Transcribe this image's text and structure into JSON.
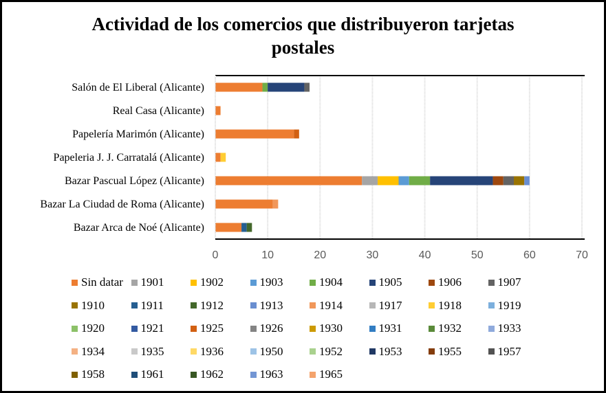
{
  "chart_data": {
    "type": "bar",
    "orientation": "horizontal",
    "stacked": true,
    "title": "Actividad de los comercios que distribuyeron tarjetas postales",
    "title_lines": [
      "Actividad de los comercios que distribuyeron  tarjetas",
      "postales"
    ],
    "xlabel": "",
    "ylabel": "",
    "xlim": [
      0,
      70
    ],
    "xticks": [
      0,
      10,
      20,
      30,
      40,
      50,
      60,
      70
    ],
    "grid": true,
    "legend_position": "bottom",
    "categories": [
      "Salón de El Liberal (Alicante)",
      "Real Casa (Alicante)",
      "Papelería Marimón (Alicante)",
      "Papeleria J. J. Carratalá (Alicante)",
      "Bazar Pascual López (Alicante)",
      "Bazar La Ciudad de Roma (Alicante)",
      "Bazar Arca de Noé (Alicante)"
    ],
    "series": [
      {
        "name": "Sin datar",
        "color": "#ED7D31",
        "values": [
          9,
          1,
          15,
          1,
          28,
          11,
          5
        ]
      },
      {
        "name": "1901",
        "color": "#A5A5A5",
        "values": [
          0,
          0,
          0,
          0,
          3,
          0,
          0
        ]
      },
      {
        "name": "1902",
        "color": "#FFC000",
        "values": [
          0,
          0,
          0,
          0,
          4,
          0,
          0
        ]
      },
      {
        "name": "1903",
        "color": "#5B9BD5",
        "values": [
          0,
          0,
          0,
          0,
          2,
          0,
          0
        ]
      },
      {
        "name": "1904",
        "color": "#70AD47",
        "values": [
          1,
          0,
          0,
          0,
          4,
          0,
          0
        ]
      },
      {
        "name": "1905",
        "color": "#264478",
        "values": [
          7,
          0,
          0,
          0,
          12,
          0,
          0
        ]
      },
      {
        "name": "1906",
        "color": "#9E480E",
        "values": [
          0,
          0,
          0,
          0,
          2,
          0,
          0
        ]
      },
      {
        "name": "1907",
        "color": "#636363",
        "values": [
          1,
          0,
          0,
          0,
          2,
          0,
          0
        ]
      },
      {
        "name": "1910",
        "color": "#997300",
        "values": [
          0,
          0,
          0,
          0,
          2,
          0,
          0
        ]
      },
      {
        "name": "1911",
        "color": "#255E91",
        "values": [
          0,
          0,
          0,
          0,
          0,
          0,
          1
        ]
      },
      {
        "name": "1912",
        "color": "#43682B",
        "values": [
          0,
          0,
          0,
          0,
          0,
          0,
          1
        ]
      },
      {
        "name": "1913",
        "color": "#698ED0",
        "values": [
          0,
          0,
          0,
          0,
          1,
          0,
          0
        ]
      },
      {
        "name": "1914",
        "color": "#F1975A",
        "values": [
          0,
          0,
          0,
          0,
          0,
          1,
          0
        ]
      },
      {
        "name": "1917",
        "color": "#B7B7B7",
        "values": [
          0,
          0,
          0,
          0,
          0,
          0,
          0
        ]
      },
      {
        "name": "1918",
        "color": "#FFCD33",
        "values": [
          0,
          0,
          0,
          1,
          0,
          0,
          0
        ]
      },
      {
        "name": "1919",
        "color": "#7CAFDD",
        "values": [
          0,
          0,
          0,
          0,
          0,
          0,
          0
        ]
      },
      {
        "name": "1920",
        "color": "#8CC168",
        "values": [
          0,
          0,
          0,
          0,
          0,
          0,
          0
        ]
      },
      {
        "name": "1921",
        "color": "#335AA1",
        "values": [
          0,
          0,
          0,
          0,
          0,
          0,
          0
        ]
      },
      {
        "name": "1925",
        "color": "#D26012",
        "values": [
          0,
          0,
          1,
          0,
          0,
          0,
          0
        ]
      },
      {
        "name": "1926",
        "color": "#848484",
        "values": [
          0,
          0,
          0,
          0,
          0,
          0,
          0
        ]
      },
      {
        "name": "1930",
        "color": "#CC9A00",
        "values": [
          0,
          0,
          0,
          0,
          0,
          0,
          0
        ]
      },
      {
        "name": "1931",
        "color": "#327DC2",
        "values": [
          0,
          0,
          0,
          0,
          0,
          0,
          0
        ]
      },
      {
        "name": "1932",
        "color": "#5A8A39",
        "values": [
          0,
          0,
          0,
          0,
          0,
          0,
          0
        ]
      },
      {
        "name": "1933",
        "color": "#8FAADC",
        "values": [
          0,
          0,
          0,
          0,
          0,
          0,
          0
        ]
      },
      {
        "name": "1934",
        "color": "#F4B183",
        "values": [
          0,
          0,
          0,
          0,
          0,
          0,
          0
        ]
      },
      {
        "name": "1935",
        "color": "#C9C9C9",
        "values": [
          0,
          0,
          0,
          0,
          0,
          0,
          0
        ]
      },
      {
        "name": "1936",
        "color": "#FFD966",
        "values": [
          0,
          0,
          0,
          0,
          0,
          0,
          0
        ]
      },
      {
        "name": "1950",
        "color": "#9DC3E6",
        "values": [
          0,
          0,
          0,
          0,
          0,
          0,
          0
        ]
      },
      {
        "name": "1952",
        "color": "#A9D18E",
        "values": [
          0,
          0,
          0,
          0,
          0,
          0,
          0
        ]
      },
      {
        "name": "1953",
        "color": "#203864",
        "values": [
          0,
          0,
          0,
          0,
          0,
          0,
          0
        ]
      },
      {
        "name": "1955",
        "color": "#843C0C",
        "values": [
          0,
          0,
          0,
          0,
          0,
          0,
          0
        ]
      },
      {
        "name": "1957",
        "color": "#525252",
        "values": [
          0,
          0,
          0,
          0,
          0,
          0,
          0
        ]
      },
      {
        "name": "1958",
        "color": "#7F6000",
        "values": [
          0,
          0,
          0,
          0,
          0,
          0,
          0
        ]
      },
      {
        "name": "1961",
        "color": "#1F4E79",
        "values": [
          0,
          0,
          0,
          0,
          0,
          0,
          0
        ]
      },
      {
        "name": "1962",
        "color": "#385723",
        "values": [
          0,
          0,
          0,
          0,
          0,
          0,
          0
        ]
      },
      {
        "name": "1963",
        "color": "#7396D4",
        "values": [
          0,
          0,
          0,
          0,
          0,
          0,
          0
        ]
      },
      {
        "name": "1965",
        "color": "#F4A36C",
        "values": [
          0,
          0,
          0,
          0,
          0,
          0,
          0
        ]
      }
    ]
  }
}
